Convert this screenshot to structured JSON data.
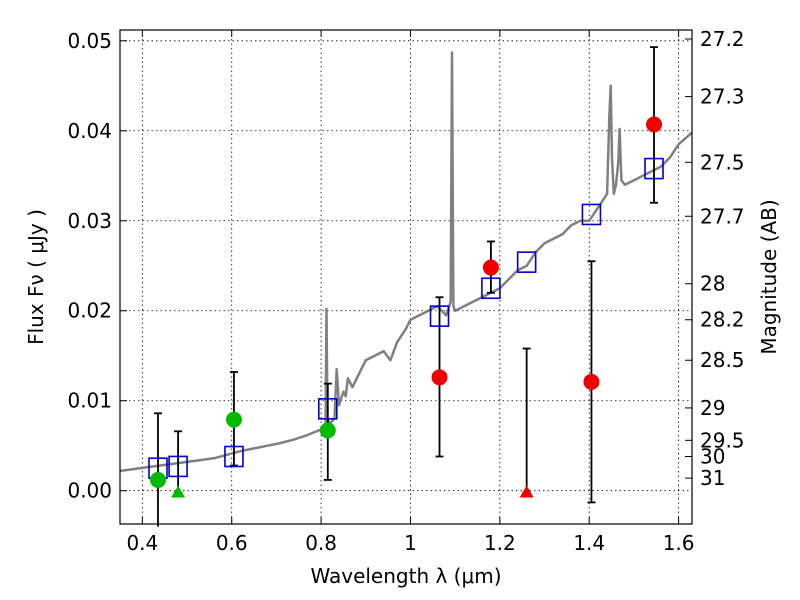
{
  "chart_data": {
    "type": "scatter",
    "xlabel": "Wavelength  λ (μm)",
    "ylabel": "Flux  Fν  ( μJy )",
    "ylabel_right": "Magnitude (AB)",
    "xlim": [
      0.35,
      1.63
    ],
    "ylim": [
      -0.0037,
      0.0512
    ],
    "x_ticks": [
      0.4,
      0.6,
      0.8,
      1.0,
      1.2,
      1.4,
      1.6
    ],
    "x_tick_labels": [
      "0.4",
      "0.6",
      "0.8",
      "1",
      "1.2",
      "1.4",
      "1.6"
    ],
    "y_ticks": [
      0.0,
      0.01,
      0.02,
      0.03,
      0.04,
      0.05
    ],
    "y_tick_labels": [
      "0.00",
      "0.01",
      "0.02",
      "0.03",
      "0.04",
      "0.05"
    ],
    "mag_ticks": [
      {
        "flux": 0.0502,
        "label": "27.2"
      },
      {
        "flux": 0.0438,
        "label": "27.3"
      },
      {
        "flux": 0.0365,
        "label": "27.5"
      },
      {
        "flux": 0.0305,
        "label": "27.7"
      },
      {
        "flux": 0.023,
        "label": "28"
      },
      {
        "flux": 0.019,
        "label": "28.2"
      },
      {
        "flux": 0.0145,
        "label": "28.5"
      },
      {
        "flux": 0.0092,
        "label": "29"
      },
      {
        "flux": 0.0056,
        "label": "29.5"
      },
      {
        "flux": 0.0038,
        "label": "30"
      },
      {
        "flux": 0.0014,
        "label": "31"
      }
    ],
    "grid": true,
    "colors": {
      "spectrum": "#808080",
      "model_square": "#0000cc",
      "green_point": "#00bb00",
      "red_point": "#ee0000",
      "errorbar": "#000000"
    },
    "series": [
      {
        "name": "Model SED spectrum",
        "style": "line",
        "points": [
          [
            0.35,
            0.0022
          ],
          [
            0.38,
            0.0024
          ],
          [
            0.41,
            0.0026
          ],
          [
            0.44,
            0.0028
          ],
          [
            0.47,
            0.003
          ],
          [
            0.5,
            0.0032
          ],
          [
            0.53,
            0.0034
          ],
          [
            0.56,
            0.0036
          ],
          [
            0.59,
            0.004
          ],
          [
            0.62,
            0.0044
          ],
          [
            0.65,
            0.0047
          ],
          [
            0.68,
            0.005
          ],
          [
            0.71,
            0.0053
          ],
          [
            0.74,
            0.0057
          ],
          [
            0.77,
            0.0062
          ],
          [
            0.8,
            0.0068
          ],
          [
            0.81,
            0.0075
          ],
          [
            0.812,
            0.0202
          ],
          [
            0.814,
            0.008
          ],
          [
            0.82,
            0.0075
          ],
          [
            0.83,
            0.008
          ],
          [
            0.835,
            0.0135
          ],
          [
            0.84,
            0.0095
          ],
          [
            0.85,
            0.011
          ],
          [
            0.855,
            0.0105
          ],
          [
            0.86,
            0.0125
          ],
          [
            0.87,
            0.0115
          ],
          [
            0.88,
            0.0125
          ],
          [
            0.9,
            0.0145
          ],
          [
            0.92,
            0.015
          ],
          [
            0.94,
            0.0155
          ],
          [
            0.955,
            0.0145
          ],
          [
            0.97,
            0.0165
          ],
          [
            0.99,
            0.018
          ],
          [
            1.0,
            0.019
          ],
          [
            1.02,
            0.0195
          ],
          [
            1.04,
            0.02
          ],
          [
            1.06,
            0.0205
          ],
          [
            1.08,
            0.0195
          ],
          [
            1.09,
            0.021
          ],
          [
            1.093,
            0.0487
          ],
          [
            1.096,
            0.0205
          ],
          [
            1.1,
            0.02
          ],
          [
            1.12,
            0.0205
          ],
          [
            1.14,
            0.021
          ],
          [
            1.16,
            0.0215
          ],
          [
            1.18,
            0.022
          ],
          [
            1.2,
            0.0225
          ],
          [
            1.22,
            0.0235
          ],
          [
            1.24,
            0.0245
          ],
          [
            1.26,
            0.025
          ],
          [
            1.28,
            0.0265
          ],
          [
            1.3,
            0.0275
          ],
          [
            1.32,
            0.028
          ],
          [
            1.34,
            0.0285
          ],
          [
            1.36,
            0.0295
          ],
          [
            1.38,
            0.03
          ],
          [
            1.4,
            0.03
          ],
          [
            1.42,
            0.0315
          ],
          [
            1.44,
            0.033
          ],
          [
            1.445,
            0.0415
          ],
          [
            1.448,
            0.045
          ],
          [
            1.451,
            0.037
          ],
          [
            1.455,
            0.033
          ],
          [
            1.46,
            0.034
          ],
          [
            1.465,
            0.0365
          ],
          [
            1.468,
            0.0402
          ],
          [
            1.472,
            0.0345
          ],
          [
            1.48,
            0.034
          ],
          [
            1.5,
            0.0345
          ],
          [
            1.52,
            0.035
          ],
          [
            1.54,
            0.0355
          ],
          [
            1.56,
            0.036
          ],
          [
            1.58,
            0.037
          ],
          [
            1.6,
            0.0385
          ],
          [
            1.63,
            0.0398
          ]
        ]
      },
      {
        "name": "Model photometry",
        "style": "open-square",
        "points": [
          [
            0.435,
            0.0025
          ],
          [
            0.48,
            0.0027
          ],
          [
            0.605,
            0.0038
          ],
          [
            0.815,
            0.0091
          ],
          [
            1.065,
            0.0194
          ],
          [
            1.18,
            0.0225
          ],
          [
            1.26,
            0.0254
          ],
          [
            1.405,
            0.0307
          ],
          [
            1.545,
            0.0358
          ]
        ]
      },
      {
        "name": "Green detections",
        "style": "filled-circle",
        "points": [
          [
            0.435,
            0.0012,
            -0.004,
            0.0086
          ],
          [
            0.605,
            0.0079,
            0.0028,
            0.0132
          ],
          [
            0.815,
            0.0067,
            0.0012,
            0.0119
          ]
        ]
      },
      {
        "name": "Red detections",
        "style": "filled-circle",
        "points": [
          [
            1.065,
            0.0126,
            0.0038,
            0.0215
          ],
          [
            1.18,
            0.0248,
            0.022,
            0.0277
          ],
          [
            1.405,
            0.0121,
            -0.0013,
            0.0255
          ],
          [
            1.545,
            0.0407,
            0.032,
            0.0493
          ]
        ]
      },
      {
        "name": "Green upper limits",
        "style": "triangle",
        "points": [
          [
            0.48,
            -0.0002,
            -0.0002,
            0.0066
          ]
        ]
      },
      {
        "name": "Red upper limits",
        "style": "triangle",
        "points": [
          [
            1.26,
            -0.0002,
            -0.0002,
            0.0158
          ]
        ]
      }
    ]
  }
}
